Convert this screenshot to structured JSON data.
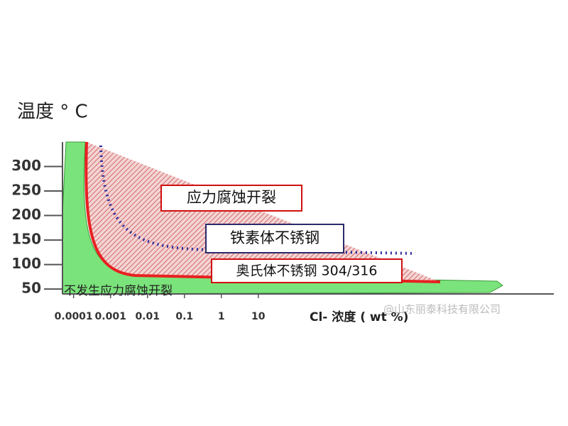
{
  "chart_data": {
    "type": "region",
    "title": "温度 ° C",
    "x_label": "Cl- 浓度 ( wt %)",
    "xscale": "log",
    "xlim": [
      5e-05,
      1000000000
    ],
    "xticks": [
      0.0001,
      0.001,
      0.01,
      0.1,
      1,
      10
    ],
    "ylim": [
      40,
      350
    ],
    "yticks": [
      50,
      100,
      150,
      200,
      250,
      300
    ],
    "annotations": [
      "应力腐蚀开裂",
      "铁素体不锈钢",
      "奥氏体不锈钢 304/316",
      "不发生应力腐蚀开裂"
    ],
    "watermark": "@山东丽泰科技有限公司"
  }
}
